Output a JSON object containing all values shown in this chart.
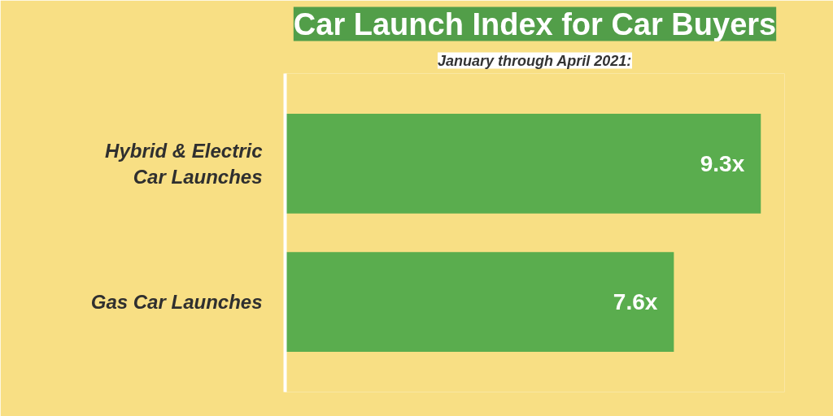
{
  "chart_data": {
    "type": "bar",
    "orientation": "horizontal",
    "title": "Car Launch Index for Car Buyers",
    "subtitle": "January through April 2021:",
    "categories": [
      "Hybrid & Electric\nCar Launches",
      "Gas Car Launches"
    ],
    "values": [
      9.3,
      7.6
    ],
    "value_labels": [
      "9.3x",
      "7.6x"
    ],
    "color": "#5aad4e",
    "grid": false
  }
}
